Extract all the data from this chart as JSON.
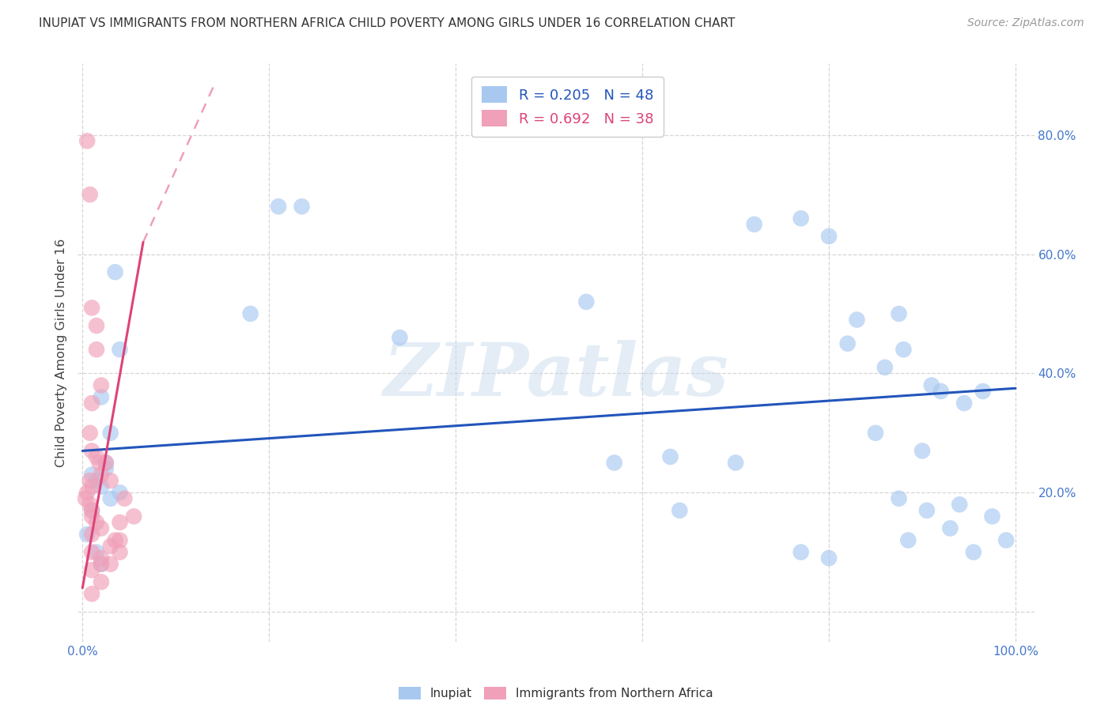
{
  "title": "INUPIAT VS IMMIGRANTS FROM NORTHERN AFRICA CHILD POVERTY AMONG GIRLS UNDER 16 CORRELATION CHART",
  "source": "Source: ZipAtlas.com",
  "ylabel": "Child Poverty Among Girls Under 16",
  "xlim": [
    -0.005,
    1.02
  ],
  "ylim": [
    -0.05,
    0.92
  ],
  "xticks": [
    0.0,
    0.2,
    0.4,
    0.6,
    0.8,
    1.0
  ],
  "xticklabels": [
    "0.0%",
    "",
    "",
    "",
    "",
    "100.0%"
  ],
  "yticks": [
    0.0,
    0.2,
    0.4,
    0.6,
    0.8
  ],
  "blue_color": "#a8c8f0",
  "blue_line_color": "#2255bb",
  "pink_color": "#f0a0b8",
  "pink_line_color": "#dd4477",
  "legend_blue_label": "R = 0.205   N = 48",
  "legend_pink_label": "R = 0.692   N = 38",
  "legend_blue_text": "#2255bb",
  "legend_pink_text": "#dd4477",
  "blue_scatter_x": [
    0.025,
    0.035,
    0.04,
    0.02,
    0.015,
    0.03,
    0.01,
    0.025,
    0.03,
    0.04,
    0.02,
    0.01,
    0.005,
    0.015,
    0.02,
    0.21,
    0.235,
    0.18,
    0.34,
    0.54,
    0.57,
    0.63,
    0.72,
    0.77,
    0.8,
    0.83,
    0.86,
    0.875,
    0.88,
    0.91,
    0.92,
    0.945,
    0.965,
    0.975,
    0.99,
    0.82,
    0.7,
    0.64,
    0.85,
    0.9,
    0.905,
    0.93,
    0.77,
    0.8,
    0.885,
    0.955,
    0.875,
    0.94
  ],
  "blue_scatter_y": [
    0.25,
    0.57,
    0.44,
    0.36,
    0.22,
    0.3,
    0.23,
    0.24,
    0.19,
    0.2,
    0.21,
    0.17,
    0.13,
    0.1,
    0.08,
    0.68,
    0.68,
    0.5,
    0.46,
    0.52,
    0.25,
    0.26,
    0.65,
    0.66,
    0.63,
    0.49,
    0.41,
    0.5,
    0.44,
    0.38,
    0.37,
    0.35,
    0.37,
    0.16,
    0.12,
    0.45,
    0.25,
    0.17,
    0.3,
    0.27,
    0.17,
    0.14,
    0.1,
    0.09,
    0.12,
    0.1,
    0.19,
    0.18
  ],
  "pink_scatter_x": [
    0.005,
    0.008,
    0.01,
    0.015,
    0.015,
    0.02,
    0.01,
    0.008,
    0.01,
    0.015,
    0.018,
    0.02,
    0.008,
    0.01,
    0.005,
    0.003,
    0.008,
    0.01,
    0.01,
    0.015,
    0.02,
    0.01,
    0.025,
    0.03,
    0.035,
    0.01,
    0.045,
    0.055,
    0.04,
    0.02,
    0.03,
    0.04,
    0.04,
    0.03,
    0.02,
    0.01,
    0.02,
    0.01
  ],
  "pink_scatter_y": [
    0.79,
    0.7,
    0.51,
    0.48,
    0.44,
    0.38,
    0.35,
    0.3,
    0.27,
    0.26,
    0.25,
    0.23,
    0.22,
    0.21,
    0.2,
    0.19,
    0.18,
    0.17,
    0.16,
    0.15,
    0.14,
    0.13,
    0.25,
    0.22,
    0.12,
    0.1,
    0.19,
    0.16,
    0.1,
    0.08,
    0.08,
    0.15,
    0.12,
    0.11,
    0.09,
    0.07,
    0.05,
    0.03
  ],
  "blue_line_x_start": 0.0,
  "blue_line_x_end": 1.0,
  "blue_line_y_start": 0.27,
  "blue_line_y_end": 0.375,
  "pink_line_solid_x_start": 0.0,
  "pink_line_solid_x_end": 0.065,
  "pink_line_solid_y_start": 0.04,
  "pink_line_solid_y_end": 0.62,
  "pink_line_dashed_x_start": 0.065,
  "pink_line_dashed_x_end": 0.14,
  "pink_line_dashed_y_start": 0.62,
  "pink_line_dashed_y_end": 0.88,
  "watermark": "ZIPatlas",
  "background_color": "#ffffff",
  "grid_color": "#cccccc",
  "axis_tick_color": "#4477cc",
  "right_yticklabels": [
    "20.0%",
    "40.0%",
    "60.0%",
    "80.0%"
  ],
  "right_yticks": [
    0.2,
    0.4,
    0.6,
    0.8
  ],
  "bottom_legend_inupiat": "Inupiat",
  "bottom_legend_immigrants": "Immigrants from Northern Africa"
}
